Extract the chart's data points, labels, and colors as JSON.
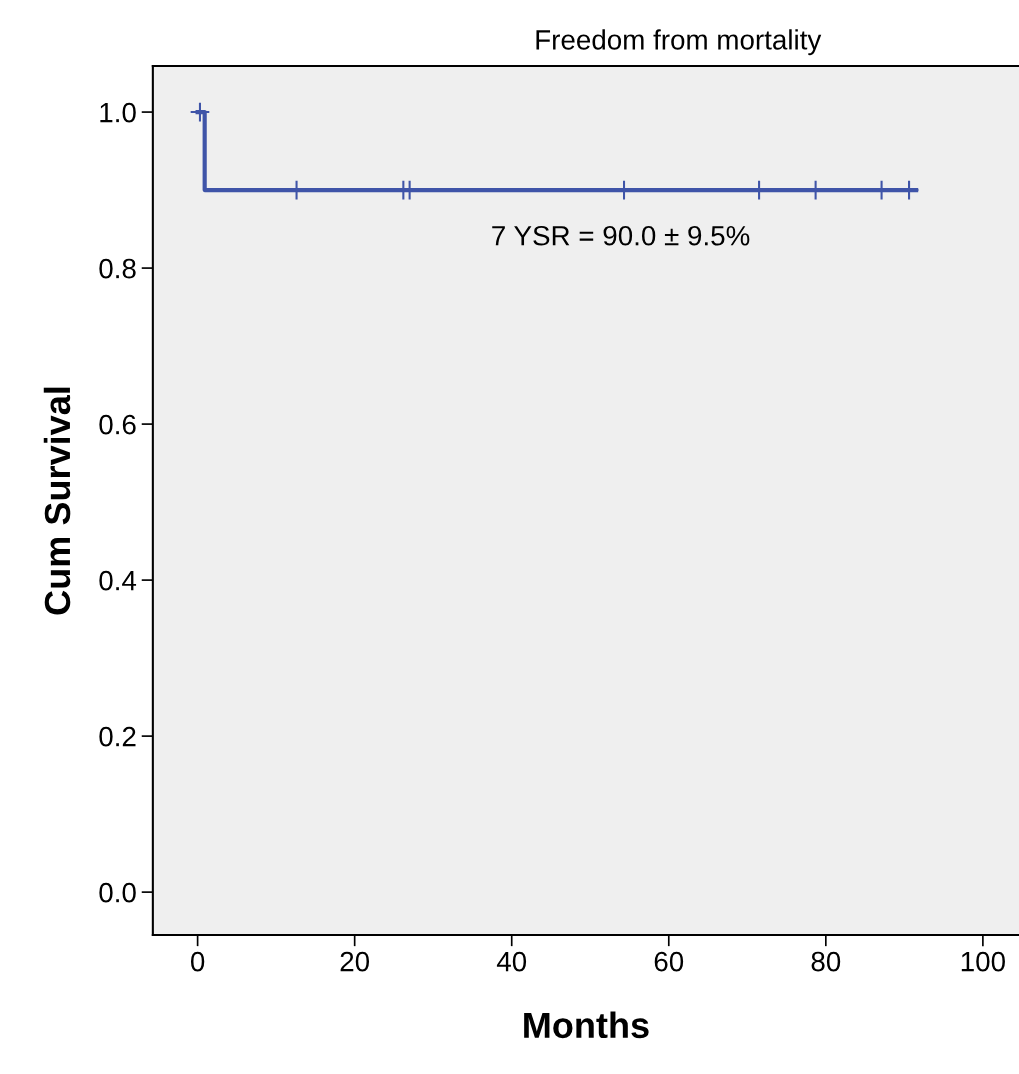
{
  "chart_data": {
    "type": "step",
    "title": "Freedom from mortality",
    "xlabel": "Months",
    "ylabel": "Cum Survival",
    "xlim": [
      -5.7,
      104.6
    ],
    "ylim": [
      -0.055,
      1.059
    ],
    "xticks": [
      0,
      20,
      40,
      60,
      80,
      100
    ],
    "yticks": [
      {
        "value": 0,
        "label": "0.0"
      },
      {
        "value": 0.2,
        "label": "0.2"
      },
      {
        "value": 0.4,
        "label": "0.4"
      },
      {
        "value": 0.6,
        "label": "0.6"
      },
      {
        "value": 0.8,
        "label": "0.8"
      },
      {
        "value": 1.0,
        "label": "1.0"
      }
    ],
    "series": [
      {
        "color": "#3f54a8",
        "x": [
          0,
          0.9,
          91.5
        ],
        "values": [
          1.0,
          0.9,
          0.9
        ]
      },
      {
        "type": "scatter",
        "marker": "cross",
        "color": "#3f54a8",
        "x": [
          0.3,
          12.6,
          26.2,
          27.0,
          54.3,
          71.5,
          78.7,
          87.1,
          90.6
        ],
        "values": [
          1.0,
          0.9,
          0.9,
          0.9,
          0.9,
          0.9,
          0.9,
          0.9,
          0.9
        ]
      }
    ],
    "annotations": [
      "7 YSR = 90.0 ± 9.5%"
    ],
    "grid": false,
    "legend": false
  }
}
